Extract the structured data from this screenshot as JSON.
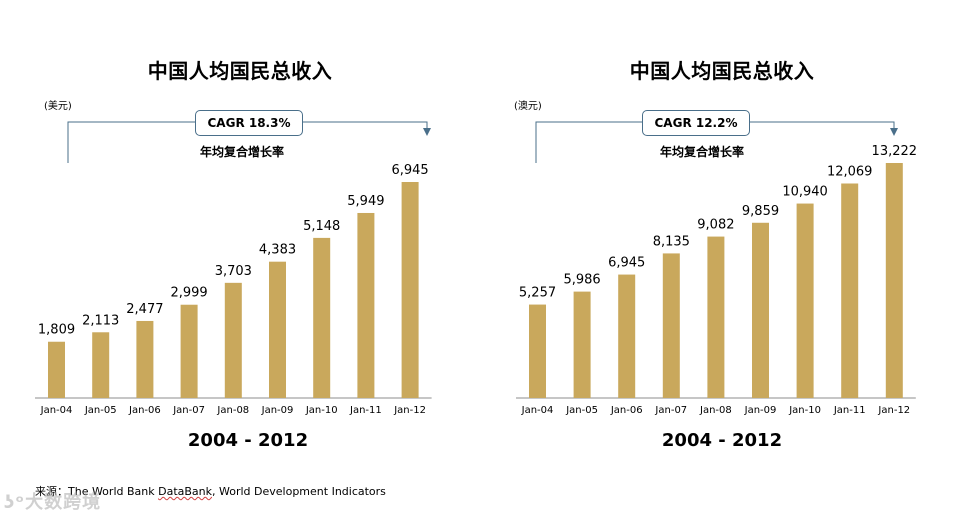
{
  "colors": {
    "bar": "#c9a85c",
    "bracket": "#4a6f8a",
    "axis": "#8c8c8c"
  },
  "chart_data": [
    {
      "type": "bar",
      "title": "中国人均国民总收入",
      "unit": "(美元)",
      "categories": [
        "Jan-04",
        "Jan-05",
        "Jan-06",
        "Jan-07",
        "Jan-08",
        "Jan-09",
        "Jan-10",
        "Jan-11",
        "Jan-12"
      ],
      "values": [
        1809,
        2113,
        2477,
        2999,
        3703,
        4383,
        5148,
        5949,
        6945
      ],
      "value_labels": [
        "1,809",
        "2,113",
        "2,477",
        "2,999",
        "3,703",
        "4,383",
        "5,148",
        "5,949",
        "6,945"
      ],
      "cagr_label": "CAGR 18.3%",
      "cagr_subtitle": "年均复合增长率",
      "period_label": "2004 - 2012",
      "xlabel": "",
      "ylabel": ""
    },
    {
      "type": "bar",
      "title": "中国人均国民总收入",
      "unit": "(澳元)",
      "categories": [
        "Jan-04",
        "Jan-05",
        "Jan-06",
        "Jan-07",
        "Jan-08",
        "Jan-09",
        "Jan-10",
        "Jan-11",
        "Jan-12"
      ],
      "values": [
        5257,
        5986,
        6945,
        8135,
        9082,
        9859,
        10940,
        12069,
        13222
      ],
      "value_labels": [
        "5,257",
        "5,986",
        "6,945",
        "8,135",
        "9,082",
        "9,859",
        "10,940",
        "12,069",
        "13,222"
      ],
      "cagr_label": "CAGR 12.2%",
      "cagr_subtitle": "年均复合增长率",
      "period_label": "2004 - 2012",
      "xlabel": "",
      "ylabel": ""
    }
  ],
  "source": {
    "prefix": "来源：The World Bank ",
    "databank": "DataBank",
    "suffix": ", World Development Indicators"
  },
  "watermark": "大数跨境"
}
